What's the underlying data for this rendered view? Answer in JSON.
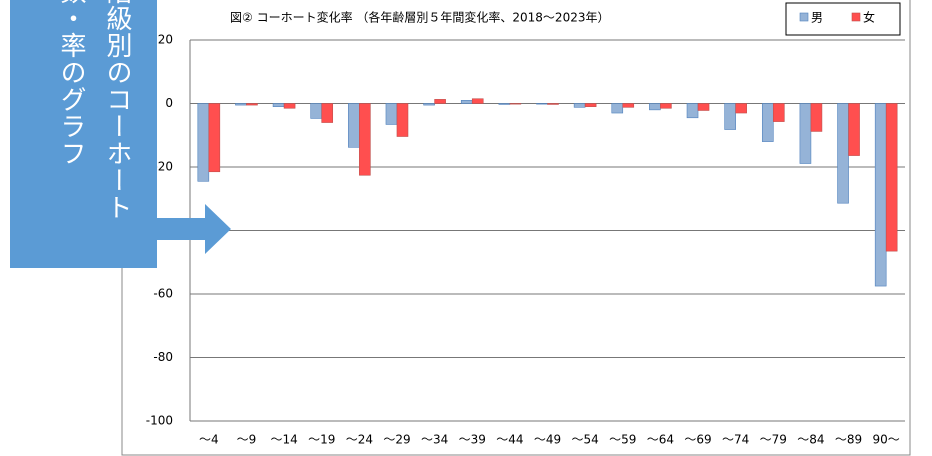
{
  "chart_data": {
    "type": "bar",
    "title": "図②  コーホート変化率  （各年齢層別５年間変化率、2018～2023年）",
    "categories": [
      "～4",
      "～9",
      "～14",
      "～19",
      "～24",
      "～29",
      "～34",
      "～39",
      "～44",
      "～49",
      "～54",
      "～59",
      "～64",
      "～69",
      "～74",
      "～79",
      "～84",
      "～89",
      "90～"
    ],
    "series": [
      {
        "name": "男",
        "color": "#95b3d7",
        "values": [
          -24.5,
          -0.5,
          -1,
          -4.7,
          -13.8,
          -6.6,
          -0.5,
          1,
          -0.3,
          -0.2,
          -1.2,
          -3,
          -2,
          -4.5,
          -8.2,
          -12,
          -18.9,
          -31.4,
          -57.5
        ]
      },
      {
        "name": "女",
        "color": "#ff4f4f",
        "values": [
          -21.5,
          -0.5,
          -1.5,
          -6,
          -22.6,
          -10.4,
          1.3,
          1.5,
          -0.2,
          -0.3,
          -1,
          -1.2,
          -1.5,
          -2.2,
          -3,
          -5.7,
          -8.8,
          -16.4,
          -46.5
        ]
      }
    ],
    "ylim": [
      -100,
      20
    ],
    "yticks": [
      20,
      0,
      -20,
      -40,
      -60,
      -80,
      -100
    ],
    "grid": true,
    "legend": "top-right"
  },
  "callout": {
    "lines": [
      "階級別のコーホート",
      "数・率のグラフ"
    ]
  }
}
